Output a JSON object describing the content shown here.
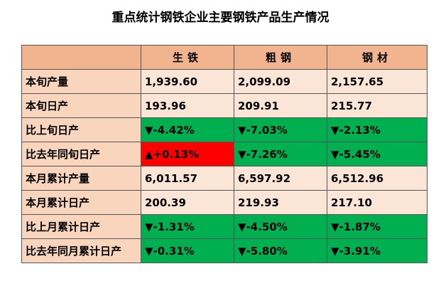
{
  "title": "重点统计钢铁企业主要钢铁产品生产情况",
  "columns": [
    "生铁",
    "粗钢",
    "钢材"
  ],
  "rows": [
    {
      "label": "本旬产量",
      "cells": [
        {
          "text": "1,939.60",
          "status": "neutral"
        },
        {
          "text": "2,099.09",
          "status": "neutral"
        },
        {
          "text": "2,157.65",
          "status": "neutral"
        }
      ]
    },
    {
      "label": "本旬日产",
      "cells": [
        {
          "text": "193.96",
          "status": "neutral"
        },
        {
          "text": "209.91",
          "status": "neutral"
        },
        {
          "text": "215.77",
          "status": "neutral"
        }
      ]
    },
    {
      "label": "比上旬日产",
      "cells": [
        {
          "text": "▼-4.42%",
          "status": "down"
        },
        {
          "text": "▼-7.03%",
          "status": "down"
        },
        {
          "text": "▼-2.13%",
          "status": "down"
        }
      ]
    },
    {
      "label": "比去年同旬日产",
      "cells": [
        {
          "text": "▲+0.13%",
          "status": "up"
        },
        {
          "text": "▼-7.26%",
          "status": "down"
        },
        {
          "text": "▼-5.45%",
          "status": "down"
        }
      ]
    },
    {
      "label": "本月累计产量",
      "cells": [
        {
          "text": "6,011.57",
          "status": "neutral"
        },
        {
          "text": "6,597.92",
          "status": "neutral"
        },
        {
          "text": "6,512.96",
          "status": "neutral"
        }
      ]
    },
    {
      "label": "本月累计日产",
      "cells": [
        {
          "text": "200.39",
          "status": "neutral"
        },
        {
          "text": "219.93",
          "status": "neutral"
        },
        {
          "text": "217.10",
          "status": "neutral"
        }
      ]
    },
    {
      "label": "比上月累计日产",
      "cells": [
        {
          "text": "▼-1.31%",
          "status": "down"
        },
        {
          "text": "▼-4.50%",
          "status": "down"
        },
        {
          "text": "▼-1.87%",
          "status": "down"
        }
      ]
    },
    {
      "label": "比去年同月累计日产",
      "cells": [
        {
          "text": "▼-0.31%",
          "status": "down"
        },
        {
          "text": "▼-5.80%",
          "status": "down"
        },
        {
          "text": "▼-3.91%",
          "status": "down"
        }
      ]
    }
  ],
  "colors": {
    "header_bg": "#f2b48f",
    "label_bg": "#f9d5bd",
    "value_bg": "#fbe5d6",
    "up": "#ff0000",
    "down": "#00b050"
  }
}
